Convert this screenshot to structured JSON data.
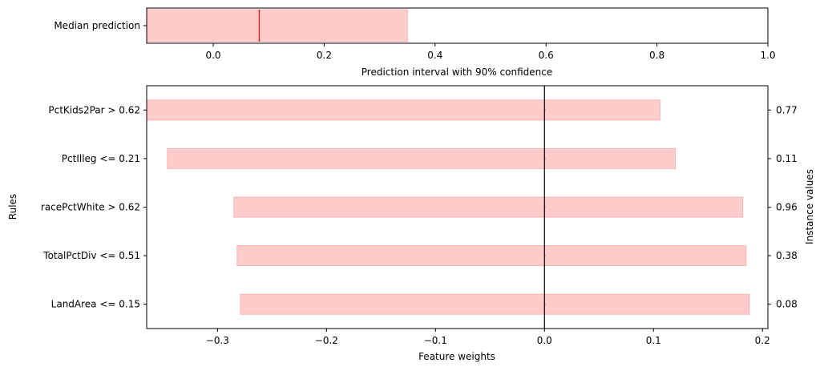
{
  "chart_data": [
    {
      "type": "bar",
      "orientation": "horizontal",
      "categories": [
        "Median prediction"
      ],
      "interval": [
        -0.12,
        0.35
      ],
      "median": 0.083,
      "xlabel": "Prediction interval with 90% confidence",
      "xlim": [
        -0.12,
        1.0
      ],
      "xticks": [
        "0.0",
        "0.2",
        "0.4",
        "0.6",
        "0.8",
        "1.0"
      ],
      "xtick_values": [
        0.0,
        0.2,
        0.4,
        0.6,
        0.8,
        1.0
      ],
      "grid": false,
      "colors": {
        "interval": "#ffcccc",
        "interval_edge": "#f4b4b4",
        "median": "#e8241e"
      }
    },
    {
      "type": "bar",
      "orientation": "horizontal",
      "categories": [
        "PctKids2Par > 0.62",
        "PctIlleg <= 0.21",
        "racePctWhite > 0.62",
        "TotalPctDiv <= 0.51",
        "LandArea <= 0.15"
      ],
      "intervals": [
        [
          -0.365,
          0.106
        ],
        [
          -0.346,
          0.12
        ],
        [
          -0.285,
          0.182
        ],
        [
          -0.282,
          0.185
        ],
        [
          -0.279,
          0.188
        ]
      ],
      "weights": [
        0.0,
        0.0,
        0.0,
        0.0,
        0.0
      ],
      "instance_values": [
        "0.77",
        "0.11",
        "0.96",
        "0.38",
        "0.08"
      ],
      "xlabel": "Feature weights",
      "ylabel": "Rules",
      "y2label": "Instance values",
      "xlim": [
        -0.365,
        0.205
      ],
      "xticks": [
        "−0.3",
        "−0.2",
        "−0.1",
        "0.0",
        "0.1",
        "0.2"
      ],
      "xtick_values": [
        -0.3,
        -0.2,
        -0.1,
        0.0,
        0.1,
        0.2
      ],
      "zero_line": 0.0,
      "grid": false,
      "colors": {
        "interval": "#ffcccc",
        "interval_edge": "#f4b4b4",
        "weight": "#e8241e",
        "zero_line": "#000000"
      }
    }
  ]
}
